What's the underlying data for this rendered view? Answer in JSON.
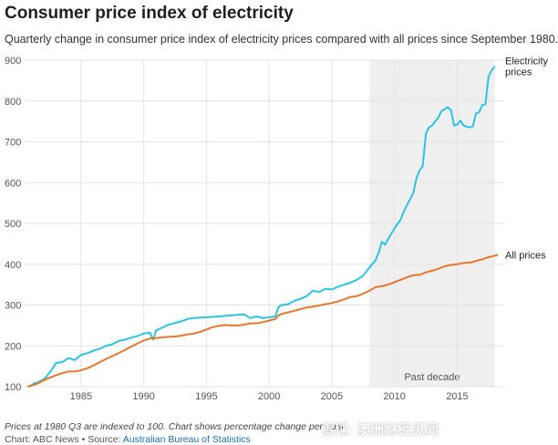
{
  "header": {
    "title": "Consumer price index of electricity",
    "subtitle": "Quarterly change in consumer price index of electricity prices compared with all prices since September 1980."
  },
  "footer": {
    "note": "Prices at 1980 Q3 are indexed to 100. Chart shows percentage change per quar",
    "credit_prefix": "Chart: ABC News • Source: ",
    "credit_source": "Australian Bureau of Statistics"
  },
  "watermark": {
    "text": "雪球: 澳洲财经见闻"
  },
  "chart_data": {
    "type": "line",
    "xlim": [
      1980.5,
      2018.75
    ],
    "ylim": [
      100,
      900
    ],
    "x_ticks": [
      1985,
      1990,
      1995,
      2000,
      2005,
      2010,
      2015
    ],
    "y_ticks": [
      100,
      200,
      300,
      400,
      500,
      600,
      700,
      800,
      900
    ],
    "grid": true,
    "shaded_region": {
      "x": [
        2008,
        2018
      ],
      "label": "Past decade",
      "color": "#efefef"
    },
    "series": [
      {
        "name": "Electricity prices",
        "label_lines": [
          "Electricity",
          "prices"
        ],
        "color": "#2bc4e2",
        "points": [
          [
            1980.75,
            100
          ],
          [
            1981.0,
            103
          ],
          [
            1981.25,
            108
          ],
          [
            1981.5,
            110
          ],
          [
            1981.75,
            114
          ],
          [
            1982.0,
            117
          ],
          [
            1982.25,
            125
          ],
          [
            1982.5,
            135
          ],
          [
            1982.75,
            145
          ],
          [
            1983.0,
            158
          ],
          [
            1983.5,
            160
          ],
          [
            1984.0,
            170
          ],
          [
            1984.5,
            165
          ],
          [
            1985.0,
            178
          ],
          [
            1985.5,
            182
          ],
          [
            1986.0,
            188
          ],
          [
            1986.5,
            193
          ],
          [
            1987.0,
            200
          ],
          [
            1987.5,
            204
          ],
          [
            1988.0,
            212
          ],
          [
            1988.5,
            215
          ],
          [
            1989.0,
            220
          ],
          [
            1989.5,
            224
          ],
          [
            1990.0,
            230
          ],
          [
            1990.5,
            232
          ],
          [
            1990.75,
            215
          ],
          [
            1991.0,
            238
          ],
          [
            1991.5,
            245
          ],
          [
            1992.0,
            252
          ],
          [
            1992.5,
            256
          ],
          [
            1993.0,
            260
          ],
          [
            1993.5,
            266
          ],
          [
            1994.0,
            268
          ],
          [
            1995.0,
            270
          ],
          [
            1996.0,
            272
          ],
          [
            1997.0,
            275
          ],
          [
            1998.0,
            277
          ],
          [
            1998.5,
            268
          ],
          [
            1999.0,
            272
          ],
          [
            1999.5,
            268
          ],
          [
            2000.0,
            270
          ],
          [
            2000.5,
            272
          ],
          [
            2000.75,
            295
          ],
          [
            2001.0,
            300
          ],
          [
            2001.5,
            302
          ],
          [
            2002.0,
            310
          ],
          [
            2002.5,
            315
          ],
          [
            2003.0,
            322
          ],
          [
            2003.5,
            335
          ],
          [
            2004.0,
            332
          ],
          [
            2004.5,
            340
          ],
          [
            2005.0,
            338
          ],
          [
            2005.5,
            345
          ],
          [
            2006.0,
            350
          ],
          [
            2006.5,
            355
          ],
          [
            2007.0,
            362
          ],
          [
            2007.5,
            372
          ],
          [
            2008.0,
            392
          ],
          [
            2008.5,
            410
          ],
          [
            2008.75,
            430
          ],
          [
            2009.0,
            455
          ],
          [
            2009.25,
            448
          ],
          [
            2009.5,
            462
          ],
          [
            2010.0,
            488
          ],
          [
            2010.5,
            510
          ],
          [
            2010.75,
            530
          ],
          [
            2011.0,
            545
          ],
          [
            2011.25,
            560
          ],
          [
            2011.5,
            575
          ],
          [
            2011.75,
            610
          ],
          [
            2012.0,
            630
          ],
          [
            2012.25,
            640
          ],
          [
            2012.5,
            720
          ],
          [
            2012.75,
            735
          ],
          [
            2013.0,
            740
          ],
          [
            2013.5,
            760
          ],
          [
            2013.75,
            775
          ],
          [
            2014.0,
            780
          ],
          [
            2014.25,
            785
          ],
          [
            2014.5,
            778
          ],
          [
            2014.75,
            740
          ],
          [
            2015.0,
            742
          ],
          [
            2015.25,
            752
          ],
          [
            2015.5,
            740
          ],
          [
            2015.75,
            737
          ],
          [
            2016.0,
            735
          ],
          [
            2016.25,
            738
          ],
          [
            2016.5,
            770
          ],
          [
            2016.75,
            772
          ],
          [
            2017.0,
            790
          ],
          [
            2017.25,
            792
          ],
          [
            2017.5,
            860
          ],
          [
            2017.75,
            875
          ],
          [
            2018.0,
            885
          ]
        ]
      },
      {
        "name": "All prices",
        "label_lines": [
          "All prices"
        ],
        "color": "#e8762d",
        "points": [
          [
            1980.75,
            100
          ],
          [
            1981.0,
            102
          ],
          [
            1981.5,
            107
          ],
          [
            1982.0,
            115
          ],
          [
            1982.5,
            122
          ],
          [
            1983.0,
            128
          ],
          [
            1983.5,
            133
          ],
          [
            1984.0,
            137
          ],
          [
            1984.5,
            137
          ],
          [
            1985.0,
            140
          ],
          [
            1985.5,
            145
          ],
          [
            1986.0,
            152
          ],
          [
            1986.5,
            160
          ],
          [
            1987.0,
            168
          ],
          [
            1987.5,
            175
          ],
          [
            1988.0,
            182
          ],
          [
            1988.5,
            190
          ],
          [
            1989.0,
            198
          ],
          [
            1989.5,
            206
          ],
          [
            1990.0,
            213
          ],
          [
            1990.5,
            218
          ],
          [
            1991.0,
            219
          ],
          [
            1991.5,
            221
          ],
          [
            1992.0,
            222
          ],
          [
            1992.5,
            223
          ],
          [
            1993.0,
            225
          ],
          [
            1993.5,
            228
          ],
          [
            1994.0,
            230
          ],
          [
            1994.5,
            234
          ],
          [
            1995.0,
            240
          ],
          [
            1995.5,
            246
          ],
          [
            1996.0,
            249
          ],
          [
            1996.5,
            251
          ],
          [
            1997.0,
            250
          ],
          [
            1997.5,
            250
          ],
          [
            1998.0,
            252
          ],
          [
            1998.5,
            255
          ],
          [
            1999.0,
            255
          ],
          [
            1999.5,
            258
          ],
          [
            2000.0,
            262
          ],
          [
            2000.5,
            266
          ],
          [
            2000.75,
            275
          ],
          [
            2001.0,
            278
          ],
          [
            2001.5,
            282
          ],
          [
            2002.0,
            286
          ],
          [
            2002.5,
            290
          ],
          [
            2003.0,
            294
          ],
          [
            2003.5,
            296
          ],
          [
            2004.0,
            299
          ],
          [
            2004.5,
            302
          ],
          [
            2005.0,
            305
          ],
          [
            2005.5,
            309
          ],
          [
            2006.0,
            314
          ],
          [
            2006.5,
            320
          ],
          [
            2007.0,
            322
          ],
          [
            2007.5,
            328
          ],
          [
            2008.0,
            335
          ],
          [
            2008.5,
            344
          ],
          [
            2009.0,
            346
          ],
          [
            2009.5,
            350
          ],
          [
            2010.0,
            356
          ],
          [
            2010.5,
            362
          ],
          [
            2011.0,
            368
          ],
          [
            2011.5,
            373
          ],
          [
            2012.0,
            374
          ],
          [
            2012.5,
            380
          ],
          [
            2013.0,
            384
          ],
          [
            2013.5,
            389
          ],
          [
            2014.0,
            395
          ],
          [
            2014.5,
            398
          ],
          [
            2015.0,
            400
          ],
          [
            2015.5,
            403
          ],
          [
            2016.0,
            404
          ],
          [
            2016.5,
            408
          ],
          [
            2017.0,
            412
          ],
          [
            2017.5,
            417
          ],
          [
            2018.0,
            421
          ],
          [
            2018.25,
            423
          ]
        ]
      }
    ]
  }
}
